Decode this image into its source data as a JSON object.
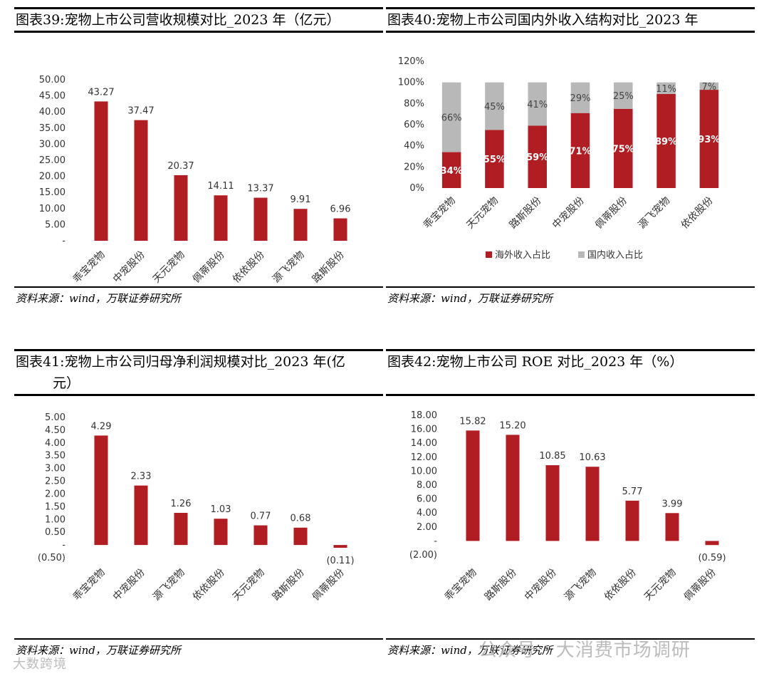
{
  "panels": [
    {
      "title": "图表39:宠物上市公司营收规模对比_2023 年（亿元）",
      "source": "资料来源：wind，万联证券研究所",
      "chart_data": {
        "type": "bar",
        "categories": [
          "乖宝宠物",
          "中宠股份",
          "天元宠物",
          "佩蒂股份",
          "依依股份",
          "源飞宠物",
          "路斯股份"
        ],
        "values": [
          43.27,
          37.47,
          20.37,
          14.11,
          13.37,
          9.91,
          6.96
        ],
        "value_labels": [
          "43.27",
          "37.47",
          "20.37",
          "14.11",
          "13.37",
          "9.91",
          "6.96"
        ],
        "ylim": [
          0,
          50
        ],
        "yticks": [
          0,
          5,
          10,
          15,
          20,
          25,
          30,
          35,
          40,
          45,
          50
        ],
        "ytick_labels": [
          "-",
          "5.00",
          "10.00",
          "15.00",
          "20.00",
          "25.00",
          "30.00",
          "35.00",
          "40.00",
          "45.00",
          "50.00"
        ],
        "color": "#b01e23"
      }
    },
    {
      "title": "图表40:宠物上市公司国内外收入结构对比_2023 年",
      "source": "资料来源：wind，万联证券研究所",
      "chart_data": {
        "type": "bar",
        "stacked": true,
        "categories": [
          "乖宝宠物",
          "天元宠物",
          "路斯股份",
          "中宠股份",
          "佩蒂股份",
          "源飞宠物",
          "依依股份"
        ],
        "series": [
          {
            "name": "海外收入占比",
            "values": [
              34,
              55,
              59,
              71,
              75,
              89,
              93
            ],
            "labels": [
              "34%",
              "55%",
              "59%",
              "71%",
              "75%",
              "89%",
              "93%"
            ],
            "color": "#b01e23"
          },
          {
            "name": "国内收入占比",
            "values": [
              66,
              45,
              41,
              29,
              25,
              11,
              7
            ],
            "labels": [
              "66%",
              "45%",
              "41%",
              "29%",
              "25%",
              "11%",
              "7%"
            ],
            "color": "#b8b8b8"
          }
        ],
        "ylim": [
          0,
          120
        ],
        "yticks": [
          0,
          20,
          40,
          60,
          80,
          100,
          120
        ],
        "ytick_labels": [
          "0%",
          "20%",
          "40%",
          "60%",
          "80%",
          "100%",
          "120%"
        ],
        "legend": "bottom"
      }
    },
    {
      "title": "图表41:宠物上市公司归母净利润规模对比_2023 年(亿",
      "title2": "元）",
      "source": "资料来源：wind，万联证券研究所",
      "chart_data": {
        "type": "bar",
        "categories": [
          "乖宝宠物",
          "中宠股份",
          "源飞宠物",
          "依依股份",
          "天元宠物",
          "路斯股份",
          "佩蒂股份"
        ],
        "values": [
          4.29,
          2.33,
          1.26,
          1.03,
          0.77,
          0.68,
          -0.11
        ],
        "value_labels": [
          "4.29",
          "2.33",
          "1.26",
          "1.03",
          "0.77",
          "0.68",
          "(0.11)"
        ],
        "ylim": [
          -0.5,
          5
        ],
        "yticks": [
          -0.5,
          0,
          0.5,
          1,
          1.5,
          2,
          2.5,
          3,
          3.5,
          4,
          4.5,
          5
        ],
        "ytick_labels": [
          "(0.50)",
          "-",
          "0.50",
          "1.00",
          "1.50",
          "2.00",
          "2.50",
          "3.00",
          "3.50",
          "4.00",
          "4.50",
          "5.00"
        ],
        "color": "#b01e23"
      }
    },
    {
      "title": "图表42:宠物上市公司 ROE 对比_2023 年（%）",
      "source": "资料来源：wind，万联证券研究所",
      "chart_data": {
        "type": "bar",
        "categories": [
          "乖宝宠物",
          "路斯股份",
          "中宠股份",
          "源飞宠物",
          "依依股份",
          "天元宠物",
          "佩蒂股份"
        ],
        "values": [
          15.82,
          15.2,
          10.85,
          10.63,
          5.77,
          3.99,
          -0.59
        ],
        "value_labels": [
          "15.82",
          "15.20",
          "10.85",
          "10.63",
          "5.77",
          "3.99",
          "(0.59)"
        ],
        "ylim": [
          -2,
          18
        ],
        "yticks": [
          -2,
          0,
          2,
          4,
          6,
          8,
          10,
          12,
          14,
          16,
          18
        ],
        "ytick_labels": [
          "(2.00)",
          "-",
          "2.00",
          "4.00",
          "6.00",
          "8.00",
          "10.00",
          "12.00",
          "14.00",
          "16.00",
          "18.00"
        ],
        "color": "#b01e23"
      }
    }
  ],
  "watermark": {
    "right": "公众号 · 大消费市场调研",
    "left": "大数跨境"
  }
}
